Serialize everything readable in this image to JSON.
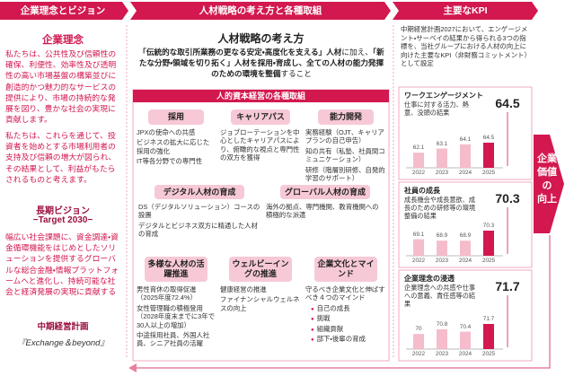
{
  "header": {
    "sections": [
      "企業理念とビジョン",
      "人材戦略の考え方と各種取組",
      "主要なKPI"
    ]
  },
  "philosophy": {
    "title": "企業理念",
    "paragraphs": [
      "私たちは、公共性及び信頼性の確保、利便性、効率性及び透明性の高い市場基盤の構築並びに創造的かつ魅力的なサービスの提供により、市場の持続的な発展を図り、豊かな社会の実現に貢献します。",
      "私たちは、これらを通じて、投資者を始めとする市場利用者の支持及び信頼の増大が図られ、その結果として、利益がもたらされるものと考えます。"
    ]
  },
  "vision": {
    "title": "長期ビジョン",
    "subtitle": "−Target 2030−",
    "text": "幅広い社会課題に、資金調達・資金循環機能をはじめとしたソリューションを提供するグローバルな総合金融・情報プラットフォームへと進化し、持続可能な社会と経済発展の実現に貢献する"
  },
  "plan": {
    "title": "中期経営計画",
    "name": "『Exchange＆beyond』"
  },
  "strategy": {
    "title": "人材戦略の考え方",
    "segments": [
      {
        "text": "「伝統的な取引所業務の更なる安定・高度化を支える」人材",
        "bold": true
      },
      {
        "text": "に加え、",
        "bold": false
      },
      {
        "text": "「新たな分野・領域を切り拓く」人材を採用・育成し、全ての人材の能力発揮のための環境を整備",
        "bold": true
      },
      {
        "text": "すること",
        "bold": false
      }
    ]
  },
  "initiatives": {
    "title": "人的資本経営の各種取組",
    "items": [
      {
        "title": "採用",
        "lines": [
          "JPXの使命への共感",
          "ビジネスの拡大に応じた採用の強化",
          "IT等各分野での専門性"
        ]
      },
      {
        "title": "キャリアパス",
        "lines": [
          "ジョブローテーションを中心としたキャリアパスにより、俯瞰的な視点と専門性の双方を獲得"
        ]
      },
      {
        "title": "能力開発",
        "lines": [
          "実務経験（OJT、キャリアプランの自己申告）",
          "知の共有（私塾、社員間コミュニケーション）",
          "研修（階層別研修、自発的学習のサポート）"
        ]
      },
      {
        "title": "デジタル人材の育成",
        "lines": [
          "DS（デジタルソリューション）コースの設置",
          "デジタルとビジネス双方に精通した人材の育成"
        ]
      },
      {
        "title": "グローバル人材の育成",
        "lines": [
          "海外の拠点、専門機関、教育機関への積極的な派遣"
        ]
      },
      {
        "title": "多様な人材の活躍推進",
        "lines": [
          "男性育休の取得促進（2025年度72.4%）",
          "女性管理職の積極登用（2028年度末までに3年で30人以上の増加）",
          "中途採用社員、外国人社員、シニア社員の活躍"
        ]
      },
      {
        "title": "ウェルビーイングの推進",
        "lines": [
          "健康経営の推進",
          "ファイナンシャルウェルネスの向上"
        ]
      },
      {
        "title": "企業文化とマインド",
        "lines": [
          "守るべき企業文化と伸ばすべき４つのマインド"
        ],
        "bullets": [
          "自己の成長",
          "挑戦",
          "組織貢献",
          "部下・後輩の育成"
        ]
      }
    ]
  },
  "kpi": {
    "intro": "中期経営計画2027において、エンゲージメント・サーベイの結果から得られる3つの指標を、当社グループにおける人材の向上に向けた主要なKPI（非財務コミットメント）として設定",
    "items": [
      {
        "title": "ワークエンゲージメント",
        "desc": "仕事に対する活力、熱意、没頭の結果",
        "headline": 64.5,
        "chart": {
          "type": "bar",
          "categories": [
            "2022",
            "2023",
            "2024",
            "2025"
          ],
          "values": [
            62.1,
            63.1,
            64.1,
            64.5
          ],
          "bar_colors": [
            "#f5bccb",
            "#f5bccb",
            "#f5bccb",
            "#d2184f"
          ]
        }
      },
      {
        "title": "社員の成長",
        "desc": "成長機会や成長意欲、成長のための研修等の環境整備の結果",
        "headline": 70.3,
        "chart": {
          "type": "bar",
          "categories": [
            "2022",
            "2023",
            "2024",
            "2025"
          ],
          "values": [
            69.1,
            68.9,
            68.9,
            70.3
          ],
          "bar_colors": [
            "#f5bccb",
            "#f5bccb",
            "#f5bccb",
            "#d2184f"
          ]
        }
      },
      {
        "title": "企業理念の浸透",
        "desc": "企業理念への共感や仕事への意義、責任感等の結果",
        "headline": 71.7,
        "chart": {
          "type": "bar",
          "categories": [
            "2022",
            "2023",
            "2024",
            "2025"
          ],
          "values": [
            70.0,
            70.8,
            70.4,
            71.7
          ],
          "bar_colors": [
            "#f5bccb",
            "#f5bccb",
            "#f5bccb",
            "#d2184f"
          ]
        }
      }
    ]
  },
  "outcome": {
    "lines": [
      "企業",
      "価値の",
      "向上"
    ]
  }
}
